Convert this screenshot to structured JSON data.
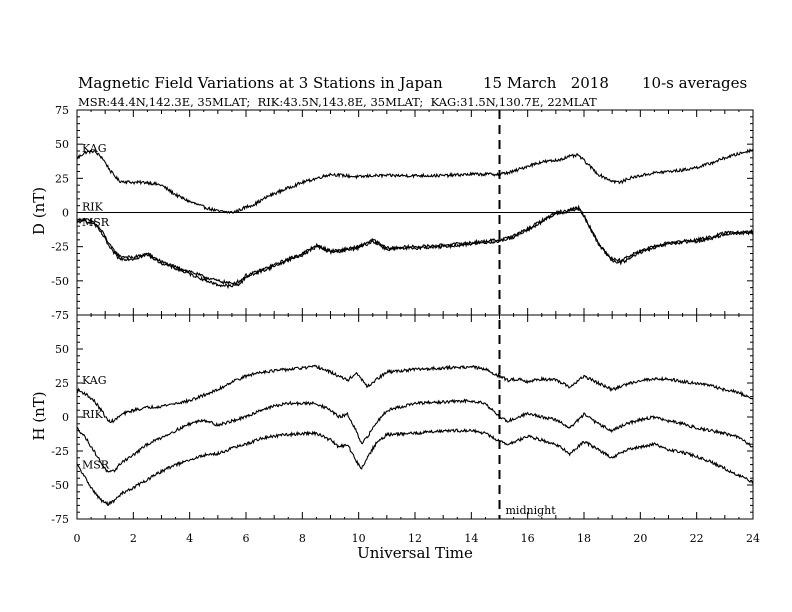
{
  "chart_data": [
    {
      "type": "line",
      "panel": "D",
      "title": "Magnetic Field Variations at 3 Stations in Japan",
      "date": "15 March   2018",
      "averaging": "10-s averages",
      "subtitle": "MSR:44.4N,142.3E, 35MLAT;  RIK:43.5N,143.8E, 35MLAT;  KAG:31.5N,130.7E, 22MLAT",
      "ylabel": "D (nT)",
      "ylim": [
        -75,
        75
      ],
      "yticks": [
        75,
        50,
        25,
        0,
        -25,
        -50,
        -75
      ],
      "xlim": [
        0,
        24
      ],
      "zero_line": true,
      "series": [
        {
          "name": "KAG",
          "x": [
            0,
            0.3,
            0.6,
            0.9,
            1.2,
            1.5,
            2,
            2.5,
            3,
            3.5,
            4,
            4.5,
            5,
            5.5,
            5.8,
            6,
            6.3,
            6.8,
            7.5,
            8,
            8.5,
            9,
            9.5,
            10,
            10.5,
            11,
            12,
            13,
            14,
            15,
            15.5,
            16,
            16.5,
            17,
            17.5,
            17.8,
            18,
            18.5,
            19,
            19.3,
            19.6,
            20,
            20.5,
            21,
            21.5,
            22,
            22.5,
            23,
            23.5,
            24
          ],
          "y": [
            40,
            44,
            45,
            40,
            30,
            23,
            22,
            22,
            20,
            13,
            8,
            4,
            1,
            0,
            2,
            4,
            6,
            12,
            18,
            22,
            25,
            28,
            27,
            26,
            27,
            27,
            27,
            27,
            28,
            28,
            30,
            34,
            37,
            38,
            41,
            42,
            38,
            28,
            23,
            22,
            25,
            27,
            29,
            30,
            31,
            33,
            36,
            40,
            43,
            46
          ]
        },
        {
          "name": "RIK",
          "x": [
            0,
            0.3,
            0.6,
            0.9,
            1.2,
            1.5,
            2,
            2.5,
            3,
            3.5,
            4,
            4.5,
            5,
            5.5,
            5.8,
            6,
            6.3,
            6.8,
            7.5,
            8,
            8.5,
            9,
            9.5,
            10,
            10.5,
            11,
            12,
            13,
            14,
            15,
            15.5,
            16,
            16.5,
            17,
            17.5,
            17.8,
            18,
            18.5,
            19,
            19.3,
            19.6,
            20,
            20.5,
            21,
            21.5,
            22,
            22.5,
            23,
            23.5,
            24
          ],
          "y": [
            -6,
            -5,
            -7,
            -14,
            -25,
            -32,
            -33,
            -30,
            -36,
            -40,
            -43,
            -47,
            -50,
            -52,
            -50,
            -46,
            -44,
            -40,
            -34,
            -30,
            -24,
            -28,
            -27,
            -25,
            -20,
            -26,
            -25,
            -24,
            -22,
            -20,
            -17,
            -12,
            -6,
            0,
            2,
            4,
            -2,
            -22,
            -34,
            -35,
            -32,
            -28,
            -25,
            -22,
            -21,
            -20,
            -18,
            -15,
            -14,
            -14
          ]
        },
        {
          "name": "MSR",
          "x": [
            0,
            0.3,
            0.6,
            0.9,
            1.2,
            1.5,
            2,
            2.5,
            3,
            3.5,
            4,
            4.5,
            5,
            5.5,
            5.8,
            6,
            6.3,
            6.8,
            7.5,
            8,
            8.5,
            9,
            9.5,
            10,
            10.5,
            11,
            12,
            13,
            14,
            15,
            15.5,
            16,
            16.5,
            17,
            17.5,
            17.8,
            18,
            18.5,
            19,
            19.3,
            19.6,
            20,
            20.5,
            21,
            21.5,
            22,
            22.5,
            23,
            23.5,
            24
          ],
          "y": [
            -7,
            -6,
            -8,
            -16,
            -27,
            -34,
            -34,
            -31,
            -37,
            -41,
            -45,
            -49,
            -53,
            -54,
            -52,
            -47,
            -45,
            -41,
            -35,
            -31,
            -25,
            -29,
            -28,
            -26,
            -21,
            -27,
            -26,
            -25,
            -23,
            -21,
            -18,
            -13,
            -7,
            -1,
            1,
            3,
            -3,
            -23,
            -35,
            -37,
            -34,
            -29,
            -26,
            -23,
            -22,
            -21,
            -19,
            -16,
            -15,
            -15
          ]
        }
      ]
    },
    {
      "type": "line",
      "panel": "H",
      "ylabel": "H (nT)",
      "xlabel": "Universal Time",
      "ylim": [
        -75,
        75
      ],
      "yticks": [
        50,
        25,
        0,
        -25,
        -50,
        -75
      ],
      "xlim": [
        0,
        24
      ],
      "xticks": [
        0,
        2,
        4,
        6,
        8,
        10,
        12,
        14,
        16,
        18,
        20,
        22,
        24
      ],
      "marker": {
        "x": 15,
        "label": "midnight"
      },
      "series": [
        {
          "name": "KAG",
          "x": [
            0,
            0.3,
            0.6,
            0.9,
            1.1,
            1.3,
            1.6,
            2,
            2.5,
            3,
            3.5,
            4,
            4.5,
            5,
            5.5,
            6,
            6.5,
            7,
            7.5,
            8,
            8.5,
            9,
            9.3,
            9.6,
            9.9,
            10.1,
            10.3,
            10.6,
            11,
            12,
            13,
            14,
            14.5,
            15,
            15.3,
            15.7,
            16,
            16.5,
            17,
            17.5,
            18,
            18.5,
            19,
            19.5,
            20,
            20.5,
            21,
            21.5,
            22,
            22.5,
            23,
            23.5,
            24
          ],
          "y": [
            20,
            17,
            12,
            4,
            -3,
            -3,
            2,
            5,
            7,
            8,
            10,
            12,
            16,
            20,
            26,
            30,
            33,
            34,
            35,
            36,
            37,
            33,
            30,
            27,
            32,
            28,
            22,
            27,
            33,
            35,
            36,
            37,
            35,
            30,
            27,
            28,
            26,
            28,
            27,
            22,
            30,
            25,
            20,
            24,
            27,
            28,
            28,
            26,
            25,
            23,
            20,
            18,
            13
          ]
        },
        {
          "name": "RIK",
          "x": [
            0,
            0.3,
            0.6,
            0.9,
            1.1,
            1.3,
            1.6,
            2,
            2.5,
            3,
            3.5,
            4,
            4.5,
            5,
            5.5,
            6,
            6.5,
            7,
            7.5,
            8,
            8.5,
            9,
            9.3,
            9.6,
            9.9,
            10.1,
            10.3,
            10.6,
            11,
            12,
            13,
            14,
            14.5,
            15,
            15.3,
            15.7,
            16,
            16.5,
            17,
            17.5,
            18,
            18.5,
            19,
            19.5,
            20,
            20.5,
            21,
            21.5,
            22,
            22.5,
            23,
            23.5,
            24
          ],
          "y": [
            -8,
            -15,
            -25,
            -35,
            -41,
            -40,
            -33,
            -28,
            -20,
            -15,
            -10,
            -5,
            -2,
            -6,
            -3,
            0,
            5,
            8,
            10,
            10,
            10,
            5,
            0,
            2,
            -10,
            -20,
            -15,
            -5,
            5,
            10,
            11,
            12,
            10,
            0,
            -3,
            0,
            3,
            0,
            -2,
            -8,
            2,
            -5,
            -10,
            -5,
            -2,
            0,
            -3,
            -5,
            -8,
            -10,
            -12,
            -15,
            -22
          ]
        },
        {
          "name": "MSR",
          "x": [
            0,
            0.3,
            0.6,
            0.9,
            1.1,
            1.3,
            1.6,
            2,
            2.5,
            3,
            3.5,
            4,
            4.5,
            5,
            5.5,
            6,
            6.5,
            7,
            7.5,
            8,
            8.5,
            9,
            9.3,
            9.6,
            9.9,
            10.1,
            10.3,
            10.6,
            11,
            12,
            13,
            14,
            14.5,
            15,
            15.3,
            15.7,
            16,
            16.5,
            17,
            17.5,
            18,
            18.5,
            19,
            19.5,
            20,
            20.5,
            21,
            21.5,
            22,
            22.5,
            23,
            23.5,
            24
          ],
          "y": [
            -35,
            -45,
            -55,
            -62,
            -64,
            -62,
            -56,
            -52,
            -46,
            -40,
            -35,
            -32,
            -28,
            -27,
            -23,
            -20,
            -16,
            -14,
            -13,
            -12,
            -12,
            -17,
            -22,
            -20,
            -32,
            -38,
            -30,
            -20,
            -13,
            -12,
            -10,
            -10,
            -12,
            -18,
            -20,
            -17,
            -14,
            -17,
            -20,
            -27,
            -18,
            -24,
            -30,
            -24,
            -22,
            -20,
            -24,
            -26,
            -29,
            -33,
            -38,
            -43,
            -48
          ]
        }
      ]
    }
  ]
}
